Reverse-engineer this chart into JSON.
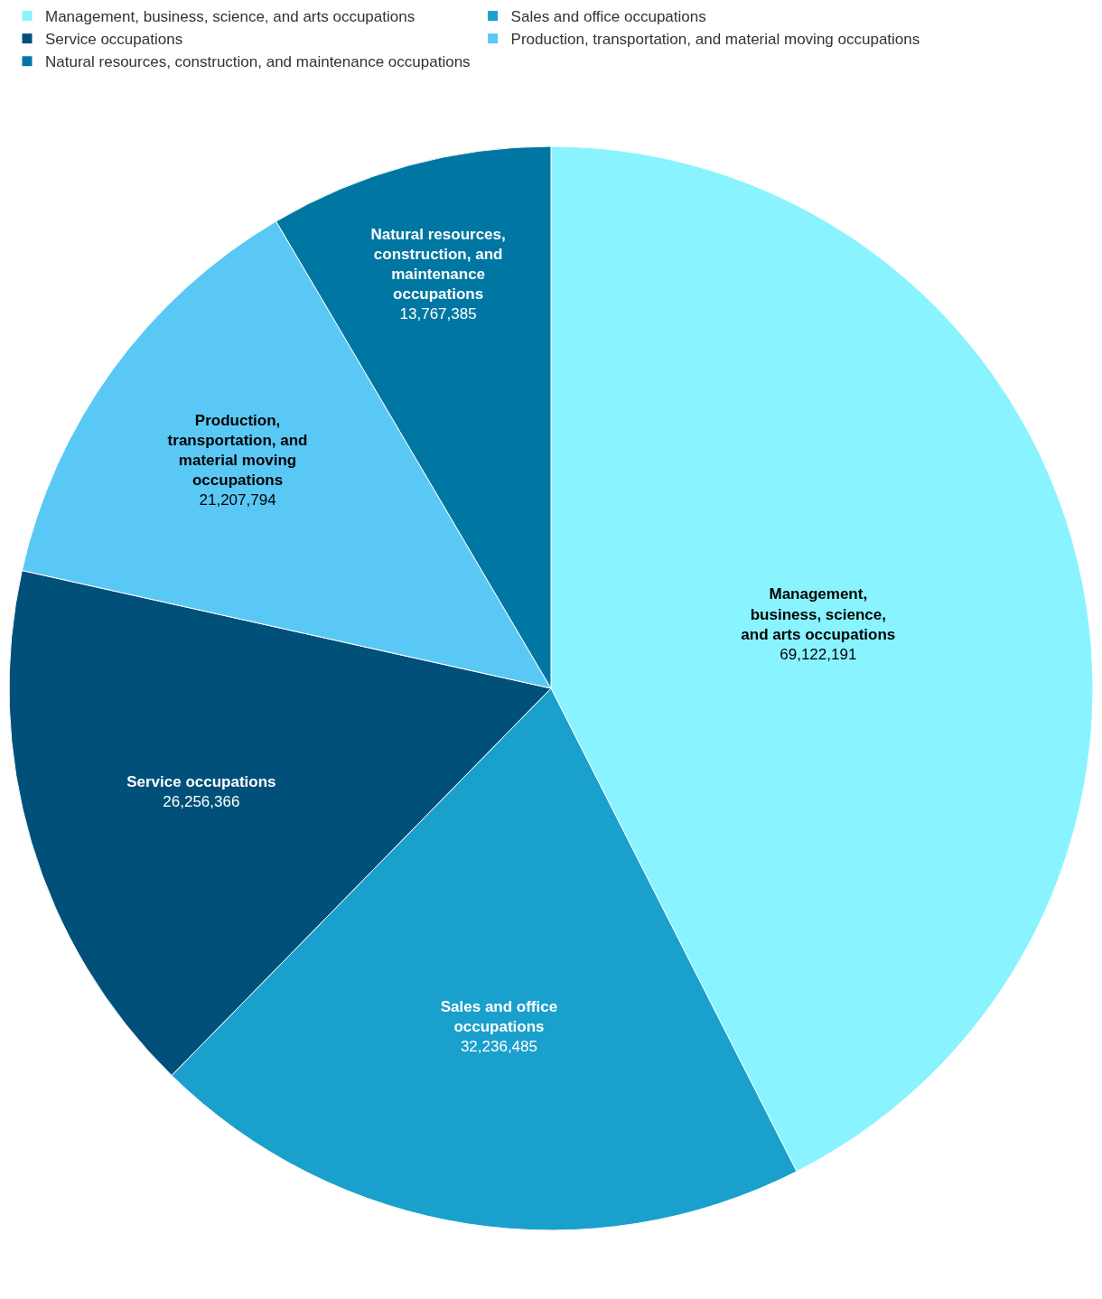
{
  "chart_data": {
    "type": "pie",
    "categories": [
      "Management, business, science, and arts occupations",
      "Sales and office occupations",
      "Service occupations",
      "Production, transportation, and material moving occupations",
      "Natural resources, construction, and maintenance occupations"
    ],
    "values": [
      69122191,
      32236485,
      26256366,
      21207794,
      13767385
    ],
    "colors": [
      "#89f4ff",
      "#1aa0cc",
      "#00507a",
      "#5ac8f5",
      "#0077a3"
    ],
    "value_labels": [
      "69,122,191",
      "32,236,485",
      "26,256,366",
      "21,207,794",
      "13,767,385"
    ],
    "legend": "top left"
  }
}
